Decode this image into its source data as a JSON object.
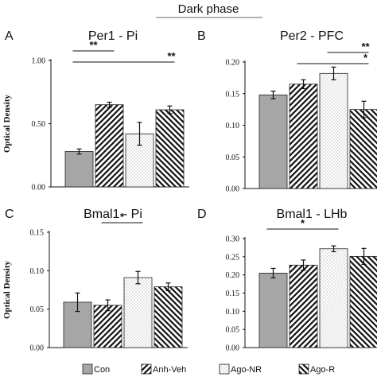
{
  "figure": {
    "title": "Dark phase",
    "legend": {
      "placement": "bottom",
      "items": [
        "Con",
        "Anh-Veh",
        "Ago-NR",
        "Ago-R"
      ]
    },
    "fills": {
      "Con": "#a6a6a6",
      "Anh-Veh": "diagonal-hatch-dense",
      "Ago-NR": "dotted",
      "Ago-R": "diagonal-hatch-dense"
    }
  },
  "chart_data": [
    {
      "type": "bar",
      "letter": "A",
      "title": "Per1 - Pi",
      "ylabel": "Optical Density",
      "xlabel": "",
      "categories": [
        "Con",
        "Anh-Veh",
        "Ago-NR",
        "Ago-R"
      ],
      "values": [
        0.28,
        0.65,
        0.42,
        0.61
      ],
      "errors": [
        0.02,
        0.02,
        0.09,
        0.03
      ],
      "ylim": [
        0,
        1.0
      ],
      "yticks": [
        "0.00",
        "0.50",
        "1.00"
      ],
      "significance": [
        {
          "from": 0,
          "to": 1,
          "label": "**"
        },
        {
          "from": 0,
          "to": 3,
          "label": "**"
        }
      ]
    },
    {
      "type": "bar",
      "letter": "B",
      "title": "Per2 - PFC",
      "ylabel": "",
      "xlabel": "",
      "categories": [
        "Con",
        "Anh-Veh",
        "Ago-NR",
        "Ago-R"
      ],
      "values": [
        0.148,
        0.165,
        0.182,
        0.125
      ],
      "errors": [
        0.006,
        0.007,
        0.01,
        0.013
      ],
      "ylim": [
        0,
        0.2
      ],
      "yticks": [
        "0.00",
        "0.05",
        "0.10",
        "0.15",
        "0.20"
      ],
      "significance": [
        {
          "from": 2,
          "to": 3,
          "label": "**"
        },
        {
          "from": 1,
          "to": 3,
          "label": "*"
        }
      ]
    },
    {
      "type": "bar",
      "letter": "C",
      "title": "Bmal1 - Pi",
      "ylabel": "Optical Density",
      "xlabel": "",
      "categories": [
        "Con",
        "Anh-Veh",
        "Ago-NR",
        "Ago-R"
      ],
      "values": [
        0.059,
        0.055,
        0.091,
        0.079
      ],
      "errors": [
        0.012,
        0.007,
        0.008,
        0.005
      ],
      "ylim": [
        0,
        0.15
      ],
      "yticks": [
        "0.00",
        "0.05",
        "0.10",
        "0.15"
      ],
      "significance": [
        {
          "from": 1,
          "to": 2,
          "label": "*"
        }
      ]
    },
    {
      "type": "bar",
      "letter": "D",
      "title": "Bmal1 - LHb",
      "ylabel": "",
      "xlabel": "",
      "categories": [
        "Con",
        "Anh-Veh",
        "Ago-NR",
        "Ago-R"
      ],
      "values": [
        0.205,
        0.227,
        0.272,
        0.251
      ],
      "errors": [
        0.013,
        0.014,
        0.008,
        0.022
      ],
      "ylim": [
        0,
        0.3
      ],
      "yticks": [
        "0.00",
        "0.05",
        "0.10",
        "0.15",
        "0.20",
        "0.25",
        "0.30"
      ],
      "significance": [
        {
          "from": 0,
          "to": 2,
          "label": "*"
        }
      ]
    }
  ]
}
